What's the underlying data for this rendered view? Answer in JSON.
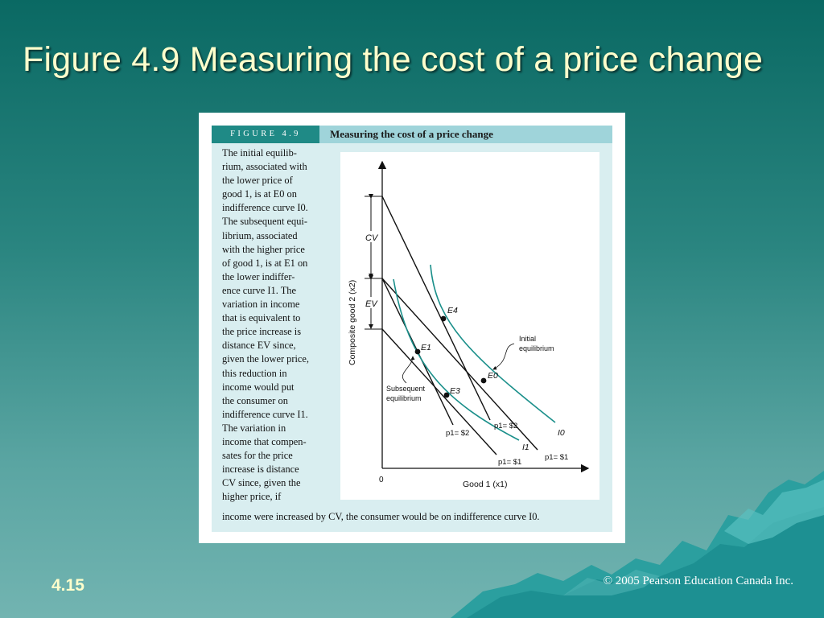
{
  "slide": {
    "title": "Figure 4.9 Measuring the cost of a price change",
    "number": "4.15",
    "copyright": "© 2005 Pearson Education Canada Inc."
  },
  "figure": {
    "label": "FIGURE 4.9",
    "title": "Measuring the cost of a price change",
    "caption_lines": [
      "The initial equilib-",
      "rium, associated with",
      "the lower price of",
      "good 1, is at E0 on",
      "indifference curve I0.",
      "The subsequent equi-",
      "librium, associated",
      "with the higher price",
      "of good 1, is at E1 on",
      "the lower indiffer-",
      "ence curve I1. The",
      "variation in income",
      "that is equivalent to",
      "the price increase is",
      "distance EV since,",
      "given the lower price,",
      "this reduction in",
      "income would put",
      "the consumer on",
      "indifference curve I1.",
      "The variation in",
      "income that compen-",
      "sates for the price",
      "increase is distance",
      "CV since, given the",
      "higher price, if"
    ],
    "caption_last_line": "income were increased by CV, the consumer would be on indifference curve I0."
  },
  "diagram": {
    "y_axis_label": "Composite good 2 (x2)",
    "x_axis_label": "Good 1 (x1)",
    "origin_label": "0",
    "cv_label": "CV",
    "ev_label": "EV",
    "points": {
      "E0": "E0",
      "E1": "E1",
      "E3": "E3",
      "E4": "E4"
    },
    "curves": {
      "I0": "I0",
      "I1": "I1"
    },
    "line_labels": {
      "p2_left": "p1= $2",
      "p2_right": "p1= $2",
      "p1_left": "p1= $1",
      "p1_right": "p1= $1"
    },
    "annotations": {
      "initial": "Initial equilibrium",
      "initial_line1": "Initial",
      "initial_line2": "equilibrium",
      "subsequent_line1": "Subsequent",
      "subsequent_line2": "equilibrium"
    },
    "colors": {
      "curve": "#1a8f8a",
      "line": "#111111"
    }
  }
}
